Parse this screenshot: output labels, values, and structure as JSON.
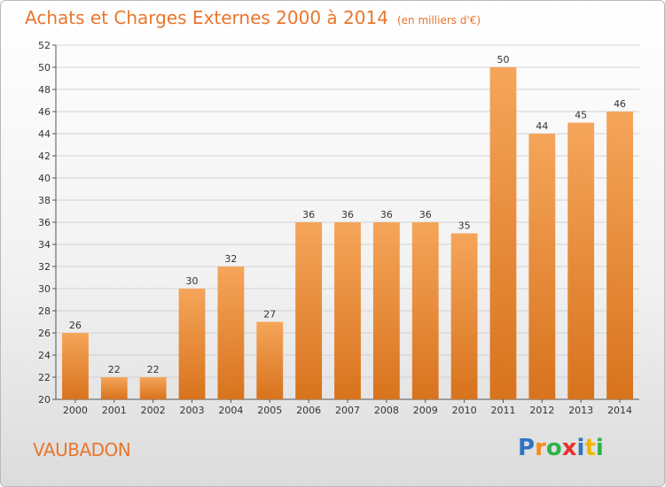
{
  "title": "Achats et Charges Externes 2000 à 2014",
  "subtitle": "(en milliers d'€)",
  "place": "VAUBADON",
  "logo": {
    "letters": [
      "P",
      "r",
      "o",
      "x",
      "i",
      "t",
      "i"
    ],
    "colors": [
      "#2f74c4",
      "#f28c1e",
      "#2db34a",
      "#e8312d",
      "#2f74c4",
      "#f2b705",
      "#2db34a"
    ]
  },
  "colors": {
    "bar_top": "#f5a55a",
    "bar_bottom": "#d8731d",
    "accent": "#e8762c"
  },
  "chart_data": {
    "type": "bar",
    "title": "Achats et Charges Externes 2000 à 2014",
    "subtitle": "(en milliers d'€)",
    "categories": [
      "2000",
      "2001",
      "2002",
      "2003",
      "2004",
      "2005",
      "2006",
      "2007",
      "2008",
      "2009",
      "2010",
      "2011",
      "2012",
      "2013",
      "2014"
    ],
    "values": [
      26,
      22,
      22,
      30,
      32,
      27,
      36,
      36,
      36,
      36,
      35,
      50,
      44,
      45,
      46
    ],
    "ylim": [
      20,
      52
    ],
    "yticks": [
      20,
      22,
      24,
      26,
      28,
      30,
      32,
      34,
      36,
      38,
      40,
      42,
      44,
      46,
      48,
      50,
      52
    ],
    "grid": true,
    "xlabel": "",
    "ylabel": ""
  }
}
